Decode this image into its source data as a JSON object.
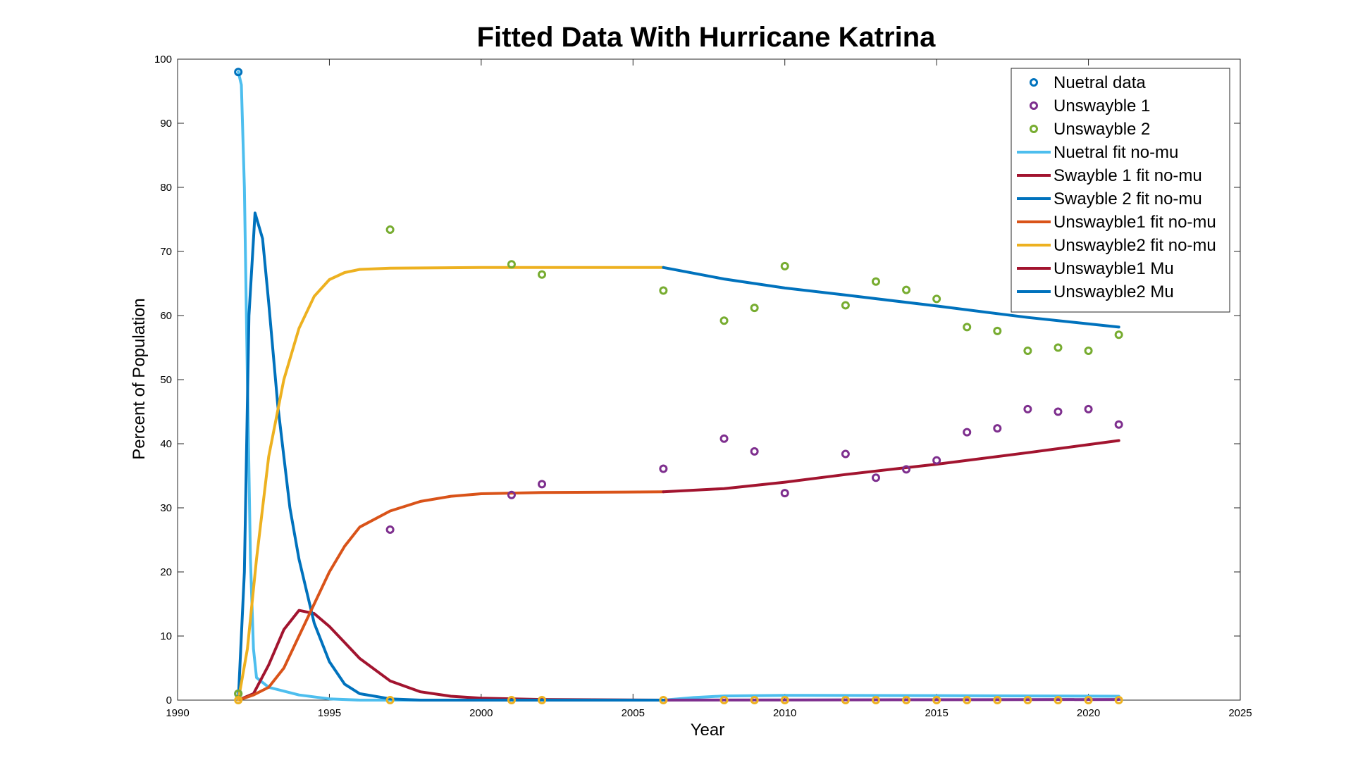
{
  "chart_data": {
    "type": "line",
    "title": "Fitted Data With Hurricane Katrina",
    "xlabel": "Year",
    "ylabel": "Percent of Population",
    "xlim": [
      1990,
      2025
    ],
    "ylim": [
      0,
      100
    ],
    "xticks": [
      1990,
      1995,
      2000,
      2005,
      2010,
      2015,
      2020,
      2025
    ],
    "yticks": [
      0,
      10,
      20,
      30,
      40,
      50,
      60,
      70,
      80,
      90,
      100
    ],
    "grid": false,
    "legend_position": "top-right",
    "series": [
      {
        "name": "Nuetral data",
        "kind": "scatter",
        "color": "#0072BD",
        "points": [
          [
            1992,
            98
          ],
          [
            1992,
            1
          ]
        ]
      },
      {
        "name": "Unswayble 1",
        "kind": "scatter",
        "color": "#7E2F8E",
        "points": [
          [
            1997,
            26.6
          ],
          [
            2001,
            32
          ],
          [
            2002,
            33.7
          ],
          [
            2006,
            36.1
          ],
          [
            2008,
            40.8
          ],
          [
            2009,
            38.8
          ],
          [
            2010,
            32.3
          ],
          [
            2012,
            38.4
          ],
          [
            2013,
            34.7
          ],
          [
            2014,
            36
          ],
          [
            2015,
            37.4
          ],
          [
            2016,
            41.8
          ],
          [
            2017,
            42.4
          ],
          [
            2018,
            45.4
          ],
          [
            2019,
            45
          ],
          [
            2020,
            45.4
          ],
          [
            2021,
            43
          ]
        ]
      },
      {
        "name": "Unswayble 2",
        "kind": "scatter",
        "color": "#77AC30",
        "points": [
          [
            1992,
            1
          ],
          [
            1997,
            73.4
          ],
          [
            2001,
            68
          ],
          [
            2002,
            66.4
          ],
          [
            2006,
            63.9
          ],
          [
            2008,
            59.2
          ],
          [
            2009,
            61.2
          ],
          [
            2010,
            67.7
          ],
          [
            2012,
            61.6
          ],
          [
            2013,
            65.3
          ],
          [
            2014,
            64
          ],
          [
            2015,
            62.6
          ],
          [
            2016,
            58.2
          ],
          [
            2017,
            57.6
          ],
          [
            2018,
            54.5
          ],
          [
            2019,
            55
          ],
          [
            2020,
            54.5
          ],
          [
            2021,
            57
          ]
        ]
      },
      {
        "name": "Nuetral fit no-mu",
        "kind": "line",
        "color": "#4DBEEE",
        "points": [
          [
            1992,
            98
          ],
          [
            1992.1,
            96
          ],
          [
            1992.2,
            80
          ],
          [
            1992.3,
            50
          ],
          [
            1992.4,
            22
          ],
          [
            1992.5,
            8
          ],
          [
            1992.6,
            3.5
          ],
          [
            1993,
            2
          ],
          [
            1994,
            0.8
          ],
          [
            1995,
            0.2
          ],
          [
            1996,
            0
          ],
          [
            2006,
            0
          ]
        ]
      },
      {
        "name": "Swayble 1 fit no-mu",
        "kind": "line",
        "color": "#A2142F",
        "points": [
          [
            1992,
            0
          ],
          [
            1992.5,
            1
          ],
          [
            1993,
            5.5
          ],
          [
            1993.5,
            11
          ],
          [
            1994,
            14
          ],
          [
            1994.5,
            13.5
          ],
          [
            1995,
            11.5
          ],
          [
            1995.5,
            9
          ],
          [
            1996,
            6.5
          ],
          [
            1997,
            3
          ],
          [
            1998,
            1.3
          ],
          [
            1999,
            0.6
          ],
          [
            2000,
            0.3
          ],
          [
            2002,
            0.1
          ],
          [
            2006,
            0
          ]
        ]
      },
      {
        "name": "Swayble 2 fit no-mu",
        "kind": "line",
        "color": "#0072BD",
        "points": [
          [
            1992,
            0
          ],
          [
            1992.2,
            20
          ],
          [
            1992.35,
            60
          ],
          [
            1992.55,
            76
          ],
          [
            1992.8,
            72
          ],
          [
            1993,
            62
          ],
          [
            1993.3,
            46
          ],
          [
            1993.7,
            30
          ],
          [
            1994,
            22
          ],
          [
            1994.5,
            12
          ],
          [
            1995,
            6
          ],
          [
            1995.5,
            2.5
          ],
          [
            1996,
            1
          ],
          [
            1997,
            0.2
          ],
          [
            1998,
            0
          ],
          [
            2006,
            0
          ]
        ]
      },
      {
        "name": "Unswayble1 fit no-mu",
        "kind": "line",
        "color": "#D95319",
        "points": [
          [
            1992,
            0
          ],
          [
            1992.5,
            0.8
          ],
          [
            1993,
            2
          ],
          [
            1993.5,
            5
          ],
          [
            1994,
            10
          ],
          [
            1994.5,
            15
          ],
          [
            1995,
            20
          ],
          [
            1995.5,
            24
          ],
          [
            1996,
            27
          ],
          [
            1997,
            29.5
          ],
          [
            1998,
            31
          ],
          [
            1999,
            31.8
          ],
          [
            2000,
            32.2
          ],
          [
            2002,
            32.4
          ],
          [
            2006,
            32.5
          ]
        ]
      },
      {
        "name": "Unswayble2 fit no-mu",
        "kind": "line",
        "color": "#EDB120",
        "points": [
          [
            1992,
            0
          ],
          [
            1992.3,
            8
          ],
          [
            1992.6,
            22
          ],
          [
            1993,
            38
          ],
          [
            1993.5,
            50
          ],
          [
            1994,
            58
          ],
          [
            1994.5,
            63
          ],
          [
            1995,
            65.6
          ],
          [
            1995.5,
            66.7
          ],
          [
            1996,
            67.2
          ],
          [
            1997,
            67.4
          ],
          [
            2000,
            67.5
          ],
          [
            2006,
            67.5
          ]
        ]
      },
      {
        "name": "Unswayble1 Mu",
        "kind": "line",
        "color": "#A2142F",
        "points": [
          [
            2006,
            32.5
          ],
          [
            2008,
            33
          ],
          [
            2010,
            34
          ],
          [
            2012,
            35.2
          ],
          [
            2015,
            36.8
          ],
          [
            2018,
            38.6
          ],
          [
            2021,
            40.5
          ]
        ]
      },
      {
        "name": "Unswayble2 Mu",
        "kind": "line",
        "color": "#0072BD",
        "points": [
          [
            2006,
            67.5
          ],
          [
            2008,
            65.7
          ],
          [
            2010,
            64.3
          ],
          [
            2012,
            63.2
          ],
          [
            2015,
            61.5
          ],
          [
            2018,
            59.7
          ],
          [
            2021,
            58.2
          ]
        ]
      }
    ],
    "extra_lines": [
      {
        "kind": "line",
        "color": "#4DBEEE",
        "points": [
          [
            2006,
            0
          ],
          [
            2007,
            0.4
          ],
          [
            2008,
            0.65
          ],
          [
            2010,
            0.75
          ],
          [
            2015,
            0.7
          ],
          [
            2021,
            0.6
          ]
        ]
      },
      {
        "kind": "line",
        "color": "#7E2F8E",
        "points": [
          [
            2006,
            0
          ],
          [
            2021,
            0.1
          ]
        ]
      },
      {
        "kind": "scatter",
        "color": "#EDB120",
        "points": [
          [
            1992,
            0
          ],
          [
            1997,
            0
          ],
          [
            2001,
            0
          ],
          [
            2002,
            0
          ],
          [
            2006,
            0
          ],
          [
            2008,
            0
          ],
          [
            2009,
            0
          ],
          [
            2010,
            0
          ],
          [
            2012,
            0
          ],
          [
            2013,
            0
          ],
          [
            2014,
            0
          ],
          [
            2015,
            0
          ],
          [
            2016,
            0
          ],
          [
            2017,
            0
          ],
          [
            2018,
            0
          ],
          [
            2019,
            0
          ],
          [
            2020,
            0
          ],
          [
            2021,
            0
          ]
        ]
      }
    ]
  }
}
